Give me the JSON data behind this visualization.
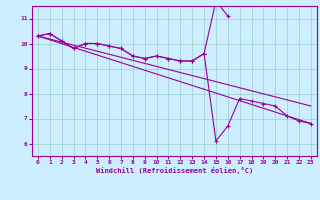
{
  "x": [
    0,
    1,
    2,
    3,
    4,
    5,
    6,
    7,
    8,
    9,
    10,
    11,
    12,
    13,
    14,
    15,
    16,
    17,
    18,
    19,
    20,
    21,
    22,
    23
  ],
  "line1": [
    10.3,
    10.4,
    10.1,
    9.8,
    10.0,
    10.0,
    9.9,
    9.8,
    9.5,
    9.4,
    9.5,
    9.4,
    9.3,
    9.3,
    9.6,
    11.7,
    11.1,
    null,
    null,
    null,
    null,
    null,
    null,
    null
  ],
  "line2": [
    10.3,
    10.4,
    10.1,
    9.8,
    10.0,
    10.0,
    9.9,
    9.8,
    9.5,
    9.4,
    9.5,
    9.4,
    9.3,
    9.3,
    9.6,
    6.1,
    6.7,
    7.8,
    7.7,
    7.6,
    7.5,
    7.1,
    6.9,
    6.8
  ],
  "line3_x": [
    0,
    23
  ],
  "line3_y": [
    10.3,
    6.8
  ],
  "line4_x": [
    0,
    23
  ],
  "line4_y": [
    10.3,
    7.5
  ],
  "color": "#990099",
  "bg_color": "#cceeff",
  "grid_color": "#99cccc",
  "xlabel": "Windchill (Refroidissement éolien,°C)",
  "ylim": [
    5.5,
    11.5
  ],
  "xlim": [
    -0.5,
    23.5
  ],
  "yticks": [
    6,
    7,
    8,
    9,
    10,
    11
  ],
  "xticks": [
    0,
    1,
    2,
    3,
    4,
    5,
    6,
    7,
    8,
    9,
    10,
    11,
    12,
    13,
    14,
    15,
    16,
    17,
    18,
    19,
    20,
    21,
    22,
    23
  ]
}
